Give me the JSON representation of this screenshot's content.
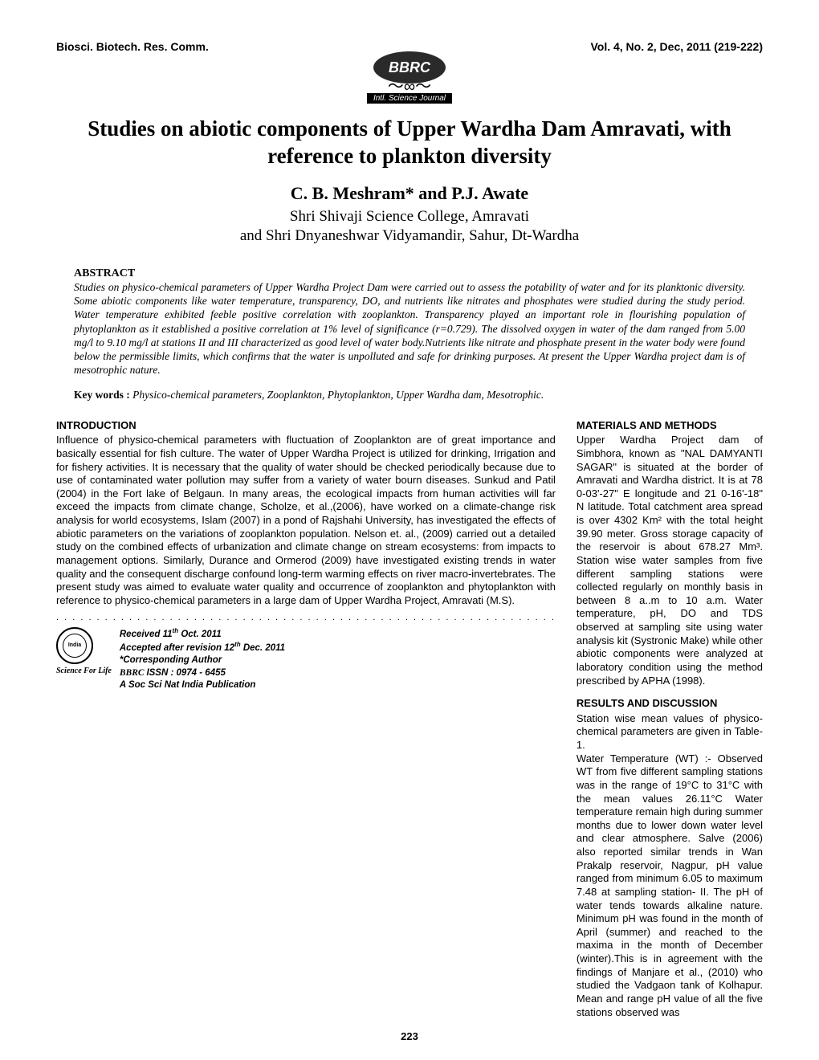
{
  "header": {
    "journal": "Biosci. Biotech. Res. Comm.",
    "volume": "Vol. 4, No. 2, Dec, 2011 (219-222)"
  },
  "logo": {
    "text": "BBRC",
    "banner": "Intl. Science Journal"
  },
  "title": "Studies on abiotic components of Upper Wardha Dam Amravati, with reference to plankton diversity",
  "authors": "C. B.  Meshram* and P.J. Awate",
  "affiliation": "Shri Shivaji Science College, Amravati\nand Shri Dnyaneshwar Vidyamandir, Sahur, Dt-Wardha",
  "abstract": {
    "heading": "ABSTRACT",
    "text": "Studies on physico-chemical parameters of Upper Wardha Project  Dam were carried out to assess the potability of water and for its planktonic diversity. Some abiotic components like water temperature, transparency, DO, and nutrients like nitrates and phosphates were studied during the study period. Water temperature exhibited feeble positive correlation with  zooplankton.  Transparency played an important role in flourishing population of phytoplankton as it established a positive correlation at 1% level of significance (r=0.729). The dissolved oxygen in water of the dam ranged from 5.00 mg/l to 9.10 mg/l at stations II and  III characterized as good level of water body.Nutrients like nitrate and phosphate present in the water body were  found below the permissible limits, which confirms that the water is unpolluted and safe for drinking purposes. At present the Upper Wardha project dam  is of mesotrophic nature.",
    "keywords_label": "Key words : ",
    "keywords": "Physico-chemical parameters, Zooplankton, Phytoplankton, Upper Wardha dam, Mesotrophic."
  },
  "left_col": {
    "intro_heading": "INTRODUCTION",
    "intro_text": "Influence of physico-chemical parameters with fluctuation of Zooplankton are of great importance and basically essential for fish culture. The water of Upper Wardha Project is utilized for drinking, Irrigation and for fishery activities. It is necessary that the quality of water should be checked periodically because due to use of contaminated water pollution may suffer from a variety of water bourn diseases. Sunkud and Patil (2004) in the Fort lake of Belgaun. In many areas, the ecological impacts from human activities will far exceed the impacts from climate change, Scholze, et al.,(2006), have worked  on a climate-change risk analysis for world ecosystems, Islam (2007) in a pond of Rajshahi University, has investigated the effects of abiotic parameters on the  variations of zooplankton population. Nelson  et. al., (2009)  carried out a detailed study on the combined effects of urbanization and climate change on stream ecosystems: from impacts to management options. Similarly,  Durance and Ormerod (2009) have investigated existing  trends in water quality and the consequent discharge confound long-term warming effects on river macro-invertebrates. The present study was aimed to evaluate water quality and occurrence of zooplankton and phytoplankton with reference to physico-chemical parameters in a large dam of  Upper Wardha Project, Amravati (M.S).",
    "received": "Received 11",
    "received_sup": "th",
    "received_tail": " Oct. 2011",
    "accepted": "Accepted after revision 12",
    "accepted_sup": "th",
    "accepted_tail": " Dec. 2011",
    "corresponding": "*Corresponding Author",
    "issn_script": "BBRC ",
    "issn": "ISSN : 0974 - 6455",
    "sfl": "Science For Life",
    "publication": "A Soc Sci Nat India Publication",
    "seal_text": "India"
  },
  "right_col": {
    "methods_heading": "MATERIALS AND METHODS",
    "methods_text": "Upper Wardha Project dam of Simbhora, known as \"NAL DAMYANTI SAGAR\" is situated at the border of Amravati and Wardha district. It is at 78 0-03'-27\" E longitude and 21 0-16'-18\" N latitude. Total catchment area spread is over 4302 Km² with the total height 39.90 meter. Gross storage capacity of the reservoir is about 678.27 Mm³. Station wise water samples from five different sampling stations were collected regularly on monthly basis in between 8 a..m to 10 a.m. Water temperature, pH, DO and TDS observed at sampling site using water  analysis kit (Systronic Make) while other abiotic components were analyzed at laboratory condition using the method prescribed by APHA (1998).",
    "results_heading": "RESULTS AND DISCUSSION",
    "results_text": "Station wise mean values of physico-chemical parameters are given in Table-1.\nWater Temperature  (WT) :- Observed WT from five different sampling stations was in the range of 19°C to 31°C with the mean values 26.11°C Water temperature remain high during summer months due to lower down water level and clear atmosphere. Salve (2006) also reported similar trends in Wan Prakalp reservoir, Nagpur, pH value ranged from minimum 6.05 to maximum 7.48 at sampling station- II.  The pH of water tends towards alkaline nature. Minimum pH was found in the month of April (summer) and reached to the maxima in the month of December (winter).This is in agreement with the findings of Manjare et al., (2010) who studied the Vadgaon tank of Kolhapur. Mean and range pH value of all the five stations observed was"
  },
  "page_number": "223",
  "colors": {
    "text": "#000000",
    "background": "#ffffff",
    "logo_bg": "#2a2a2a"
  },
  "typography": {
    "title_fontsize": 27,
    "authors_fontsize": 22,
    "affiliation_fontsize": 19,
    "abstract_fontsize": 13.5,
    "body_fontsize": 13,
    "header_fontsize": 14,
    "meta_fontsize": 11.5
  }
}
